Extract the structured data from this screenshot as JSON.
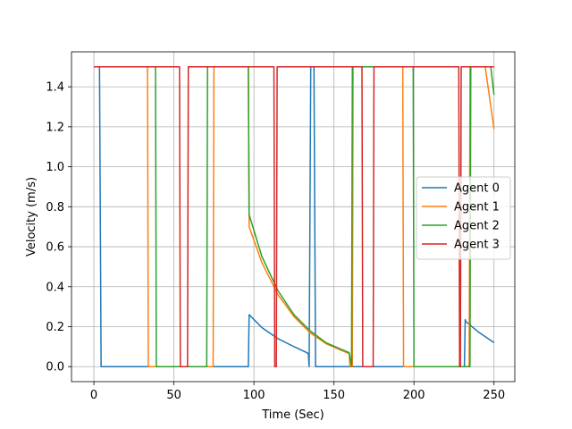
{
  "chart_data": {
    "type": "line",
    "title": "",
    "xlabel": "Time (Sec)",
    "ylabel": "Velocity (m/s)",
    "xlim": [
      -14,
      263
    ],
    "ylim": [
      -0.075,
      1.575
    ],
    "xticks": [
      0,
      50,
      100,
      150,
      200,
      250
    ],
    "yticks": [
      0.0,
      0.2,
      0.4,
      0.6,
      0.8,
      1.0,
      1.2,
      1.4
    ],
    "x_tick_labels": [
      "0",
      "50",
      "100",
      "150",
      "200",
      "250"
    ],
    "y_tick_labels": [
      "0.0",
      "0.2",
      "0.4",
      "0.6",
      "0.8",
      "1.0",
      "1.2",
      "1.4"
    ],
    "grid": true,
    "legend_position": "center-right",
    "series": [
      {
        "name": "Agent 0",
        "color": "#1f77b4",
        "x": [
          0,
          3.5,
          4.5,
          96.5,
          97,
          105,
          115,
          125,
          133,
          134,
          134.5,
          135.5,
          137.5,
          138.5,
          231.5,
          232,
          232.5,
          240,
          250
        ],
        "y": [
          1.5,
          1.5,
          0,
          0,
          0.26,
          0.195,
          0.14,
          0.1,
          0.07,
          0.065,
          0,
          1.5,
          1.5,
          0,
          0,
          0.235,
          0.225,
          0.175,
          0.12
        ]
      },
      {
        "name": "Agent 1",
        "color": "#ff7f0e",
        "x": [
          0,
          33.5,
          34,
          74.5,
          75,
          96.5,
          97,
          105,
          115,
          125,
          135,
          145,
          155,
          159.5,
          160,
          161.5,
          162,
          193,
          193.5,
          234.5,
          235,
          244.5,
          250
        ],
        "y": [
          1.5,
          1.5,
          0,
          0,
          1.5,
          1.5,
          0.7,
          0.52,
          0.36,
          0.25,
          0.17,
          0.115,
          0.08,
          0.065,
          0,
          0,
          1.5,
          1.5,
          0,
          0,
          1.5,
          1.5,
          1.19
        ]
      },
      {
        "name": "Agent 2",
        "color": "#2ca02c",
        "x": [
          0,
          38.5,
          39,
          70.5,
          71,
          96.5,
          97,
          105,
          115,
          125,
          135,
          145,
          155,
          159.5,
          161,
          161.5,
          199.5,
          200,
          235,
          235.5,
          248,
          250
        ],
        "y": [
          1.5,
          1.5,
          0,
          0,
          1.5,
          1.5,
          0.76,
          0.55,
          0.38,
          0.26,
          0.18,
          0.12,
          0.085,
          0.07,
          0,
          1.5,
          1.5,
          0,
          0,
          1.5,
          1.5,
          1.36
        ]
      },
      {
        "name": "Agent 3",
        "color": "#d62728",
        "x": [
          0,
          53.5,
          54,
          58.5,
          59,
          112.5,
          113,
          114,
          114.5,
          167.5,
          168,
          174.5,
          175,
          228,
          228.5,
          229,
          229.5,
          250
        ],
        "y": [
          1.5,
          1.5,
          0,
          0,
          1.5,
          1.5,
          0,
          0,
          1.5,
          1.5,
          0,
          0,
          1.5,
          1.5,
          0,
          0,
          1.5,
          1.5
        ]
      }
    ]
  }
}
